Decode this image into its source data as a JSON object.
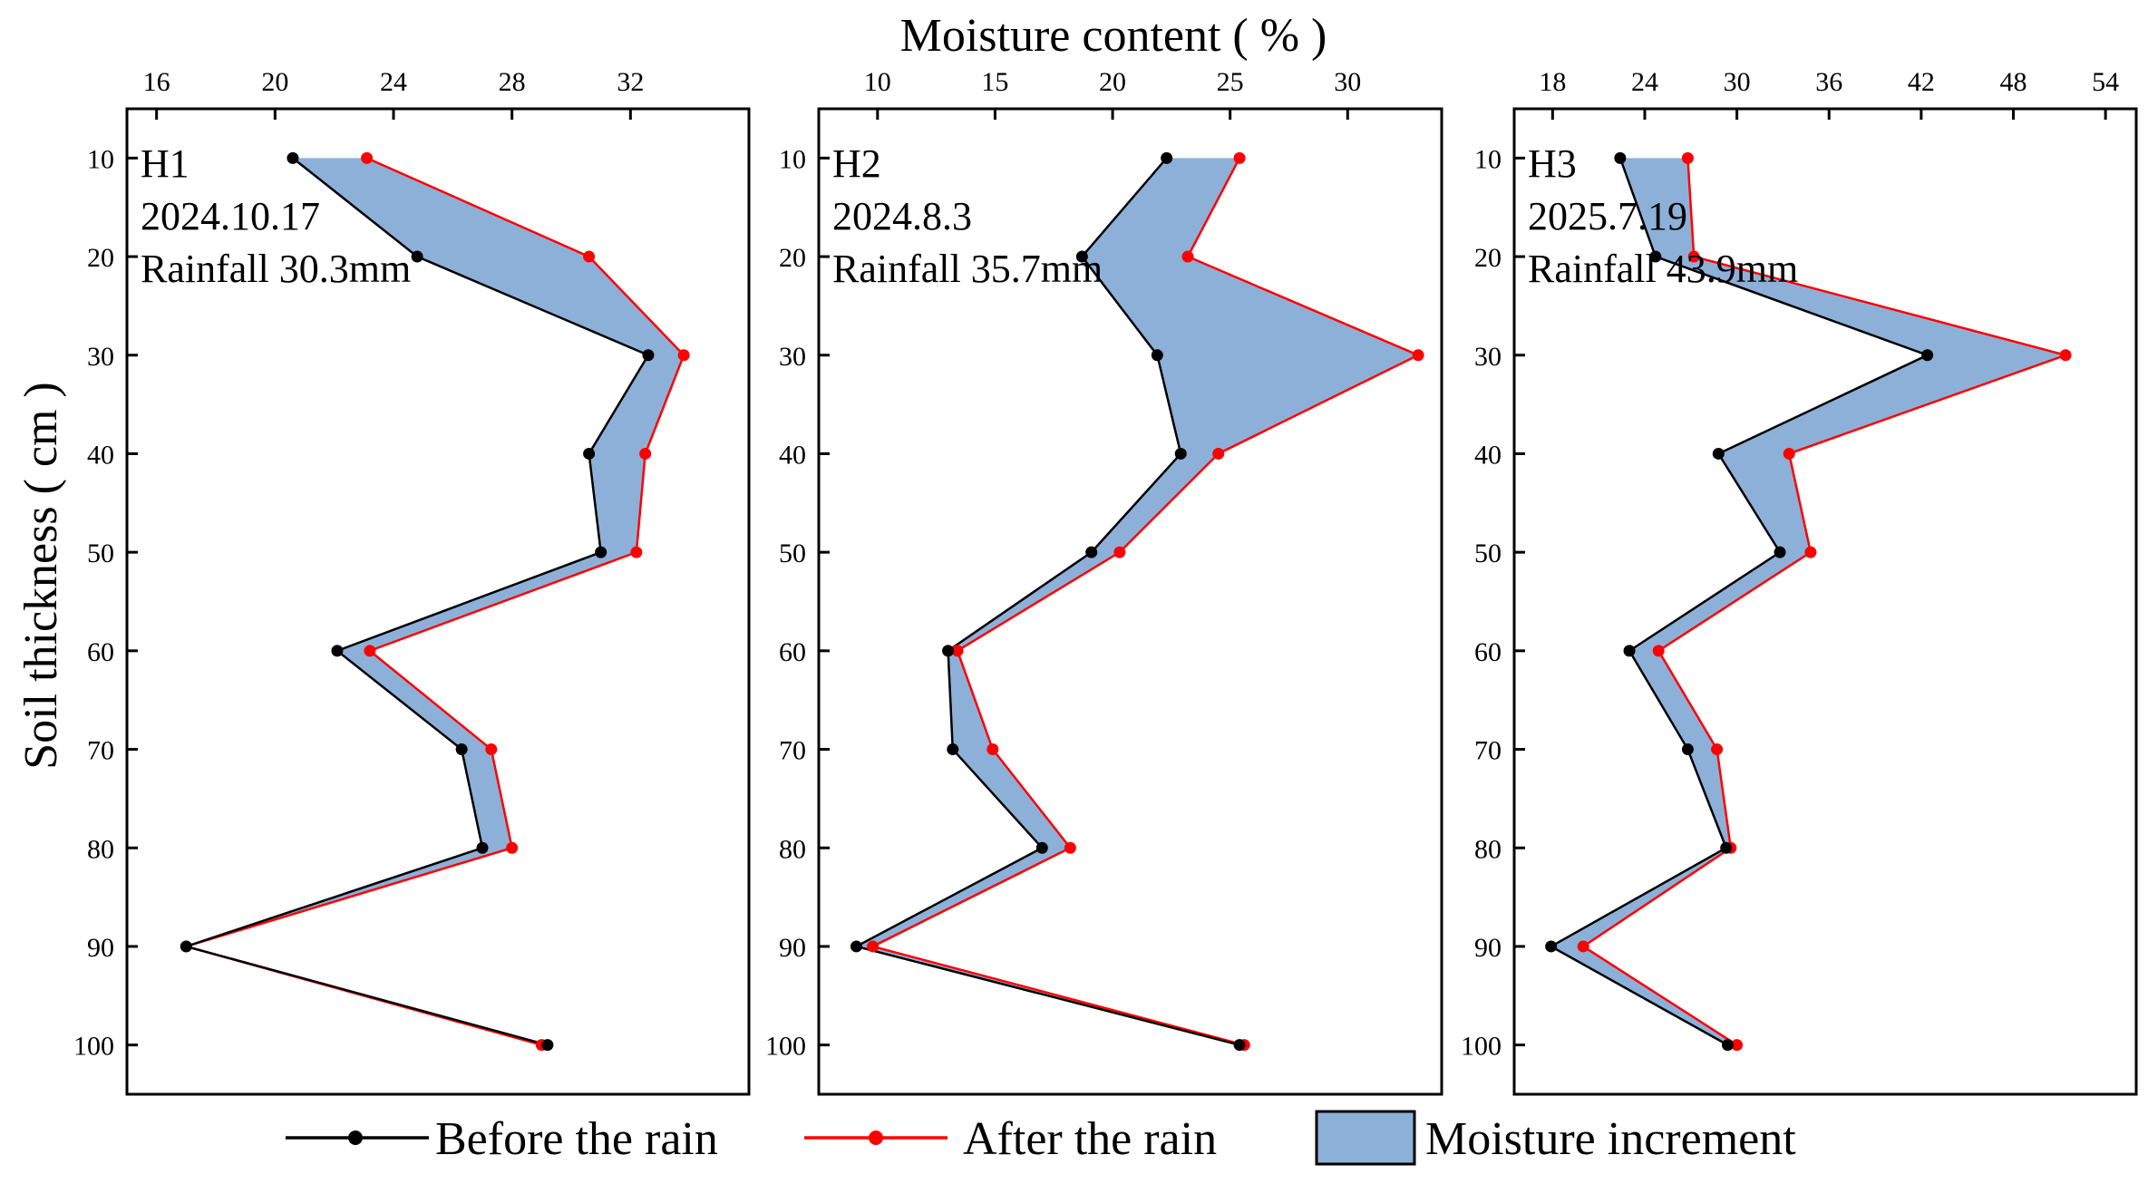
{
  "chart_data": {
    "type": "line",
    "title": "Moisture content ( % )",
    "xlabel": "Moisture content ( % )",
    "ylabel": "Soil thickness ( cm )",
    "y_ticks": [
      10,
      20,
      30,
      40,
      50,
      60,
      70,
      80,
      90,
      100
    ],
    "ylim": [
      5,
      105
    ],
    "legend": {
      "position": "bottom",
      "items": [
        {
          "key": "before",
          "label": "Before the rain",
          "color": "#000000"
        },
        {
          "key": "after",
          "label": "After the rain",
          "color": "#ff0000"
        },
        {
          "key": "increment",
          "label": "Moisture increment",
          "color": "#8db0d9"
        }
      ]
    },
    "colors": {
      "before": "#000000",
      "after": "#ff0000",
      "fill": "#8db0d9",
      "frame": "#000000"
    },
    "panels": [
      {
        "id": "H1",
        "label": "H1",
        "date": "2024.10.17",
        "rainfall": "Rainfall 30.3mm",
        "xlim": [
          15,
          36
        ],
        "x_ticks": [
          16,
          20,
          24,
          28,
          32
        ],
        "depth": [
          10,
          20,
          30,
          40,
          50,
          60,
          70,
          80,
          90,
          100
        ],
        "before": [
          20.6,
          24.8,
          32.6,
          30.6,
          31.0,
          22.1,
          26.3,
          27.0,
          17.0,
          29.2
        ],
        "after": [
          23.1,
          30.6,
          33.8,
          32.5,
          32.2,
          23.2,
          27.3,
          28.0,
          17.0,
          29.0
        ]
      },
      {
        "id": "H2",
        "label": "H2",
        "date": "2024.8.3",
        "rainfall": "Rainfall 35.7mm",
        "xlim": [
          7.5,
          34
        ],
        "x_ticks": [
          10,
          15,
          20,
          25,
          30
        ],
        "depth": [
          10,
          20,
          30,
          40,
          50,
          60,
          70,
          80,
          90,
          100
        ],
        "before": [
          22.3,
          18.7,
          21.9,
          22.9,
          19.1,
          13.0,
          13.2,
          17.0,
          9.1,
          25.4
        ],
        "after": [
          25.4,
          23.2,
          33.0,
          24.5,
          20.3,
          13.4,
          14.9,
          18.2,
          9.8,
          25.6
        ]
      },
      {
        "id": "H3",
        "label": "H3",
        "date": "2025.7.19",
        "rainfall": "Rainfall 43.9mm",
        "xlim": [
          15.5,
          56
        ],
        "x_ticks": [
          18,
          24,
          30,
          36,
          42,
          48,
          54
        ],
        "depth": [
          10,
          20,
          30,
          40,
          50,
          60,
          70,
          80,
          90,
          100
        ],
        "before": [
          22.4,
          24.7,
          42.4,
          28.8,
          32.8,
          23.0,
          26.8,
          29.3,
          17.9,
          29.4
        ],
        "after": [
          26.8,
          27.2,
          51.4,
          33.4,
          34.8,
          24.9,
          28.7,
          29.6,
          20.0,
          30.0
        ]
      }
    ]
  }
}
